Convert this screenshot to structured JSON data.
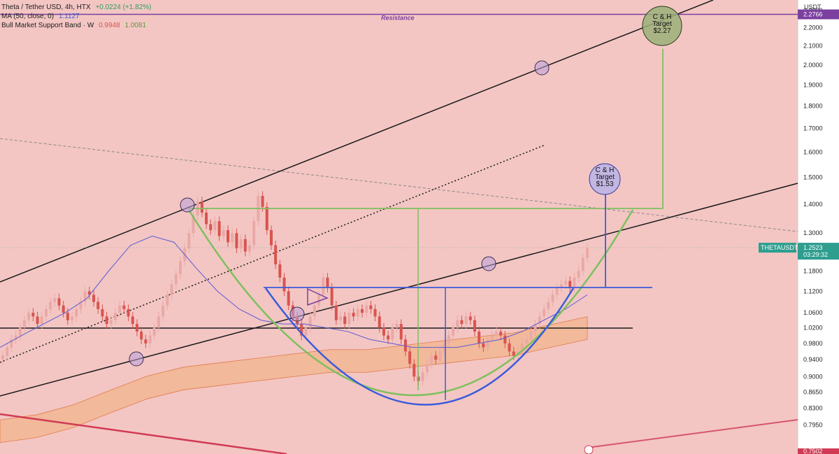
{
  "header": {
    "symbol_line": "Theta / Tether USD, 4h, HTX",
    "change": "+0.0224 (+1.82%)",
    "ma_label": "MA (50, close, 0)",
    "ma_value": "1.1127",
    "band_label": "Bull Market Support Band · W",
    "band_value_1": "0.9948",
    "band_value_2": "1.0081"
  },
  "colors": {
    "background": "#f3c6c3",
    "up_candle": "#e9a9a6",
    "down_candle": "#d9534f",
    "trend_line": "#1a1a1a",
    "pattern_green": "#7fbf5e",
    "pattern_blue": "#3b5bdb",
    "ma_line": "#5b5bd6",
    "band_fill": "#f2b48c",
    "resistance": "#7b3fa0",
    "price_label": "#2e9e8f",
    "red_line": "#d13a55"
  },
  "chart_data": {
    "type": "line",
    "axis_unit": "USDT",
    "y_scale": "log",
    "ylim": [
      0.7502,
      2.32
    ],
    "y_ticks": [
      "2.3000",
      "2.2000",
      "2.1000",
      "2.0000",
      "1.9000",
      "1.8000",
      "1.7000",
      "1.6000",
      "1.5000",
      "1.4000",
      "1.3000",
      "1.1800",
      "1.1200",
      "1.0600",
      "1.0200",
      "0.9800",
      "0.9400",
      "0.9000",
      "0.8650",
      "0.8300",
      "0.7950"
    ],
    "resistance": {
      "label": "Resistance",
      "value": 2.2766,
      "value_label": "2.2766"
    },
    "last_price": {
      "symbol": "THETAUSDT",
      "value": 1.2523,
      "value_label": "1.2523",
      "countdown": "03:29:32"
    },
    "bottom_price_label": "0.7502",
    "targets": [
      {
        "lines": [
          "C & H",
          "Target",
          "$2.27"
        ],
        "value": 2.27
      },
      {
        "lines": [
          "C & H",
          "Target",
          "$1.53"
        ],
        "value": 1.53
      }
    ],
    "series": [
      {
        "name": "Theta / Tether USD",
        "style": "candles",
        "values": [
          0.95,
          0.97,
          0.99,
          1.0,
          1.02,
          1.04,
          1.06,
          1.05,
          1.03,
          1.05,
          1.07,
          1.09,
          1.1,
          1.08,
          1.06,
          1.04,
          1.05,
          1.07,
          1.09,
          1.12,
          1.11,
          1.09,
          1.07,
          1.05,
          1.03,
          1.04,
          1.06,
          1.08,
          1.07,
          1.05,
          1.03,
          1.01,
          0.99,
          0.98,
          1.0,
          1.02,
          1.05,
          1.08,
          1.11,
          1.14,
          1.17,
          1.21,
          1.25,
          1.3,
          1.36,
          1.41,
          1.37,
          1.33,
          1.31,
          1.34,
          1.29,
          1.31,
          1.27,
          1.3,
          1.25,
          1.28,
          1.24,
          1.26,
          1.34,
          1.43,
          1.39,
          1.31,
          1.26,
          1.2,
          1.16,
          1.12,
          1.08,
          1.05,
          1.03,
          1.0,
          1.02,
          1.05,
          1.08,
          1.11,
          1.16,
          1.13,
          1.08,
          1.04,
          1.05,
          1.03,
          1.06,
          1.05,
          1.07,
          1.06,
          1.08,
          1.07,
          1.05,
          1.02,
          1.0,
          0.99,
          1.02,
          1.03,
          0.99,
          0.96,
          0.93,
          0.9,
          0.89,
          0.91,
          0.93,
          0.95,
          0.94,
          0.96,
          0.98,
          1.0,
          1.02,
          1.04,
          1.03,
          1.05,
          1.04,
          1.01,
          0.98,
          0.97,
          0.99,
          1.0,
          1.01,
          1.0,
          0.98,
          0.96,
          0.95,
          0.96,
          0.98,
          0.99,
          1.01,
          1.03,
          1.05,
          1.07,
          1.09,
          1.11,
          1.13,
          1.14,
          1.15,
          1.13,
          1.16,
          1.18,
          1.22,
          1.25
        ]
      },
      {
        "name": "MA (50, close, 0)",
        "style": "line",
        "values": [
          0.97,
          1.0,
          1.03,
          1.06,
          1.1,
          1.18,
          1.26,
          1.29,
          1.27,
          1.19,
          1.12,
          1.07,
          1.04,
          1.03,
          1.03,
          1.02,
          1.01,
          0.99,
          0.98,
          0.97,
          0.97,
          0.97,
          0.98,
          0.99,
          1.01,
          1.04,
          1.07,
          1.11
        ]
      },
      {
        "name": "Bull Market Support Band",
        "style": "band",
        "values": [
          0.76,
          0.77,
          0.79,
          0.82,
          0.85,
          0.87,
          0.88,
          0.89,
          0.9,
          0.91,
          0.91,
          0.92,
          0.93,
          0.94,
          0.95,
          0.97,
          0.99
        ]
      }
    ]
  }
}
